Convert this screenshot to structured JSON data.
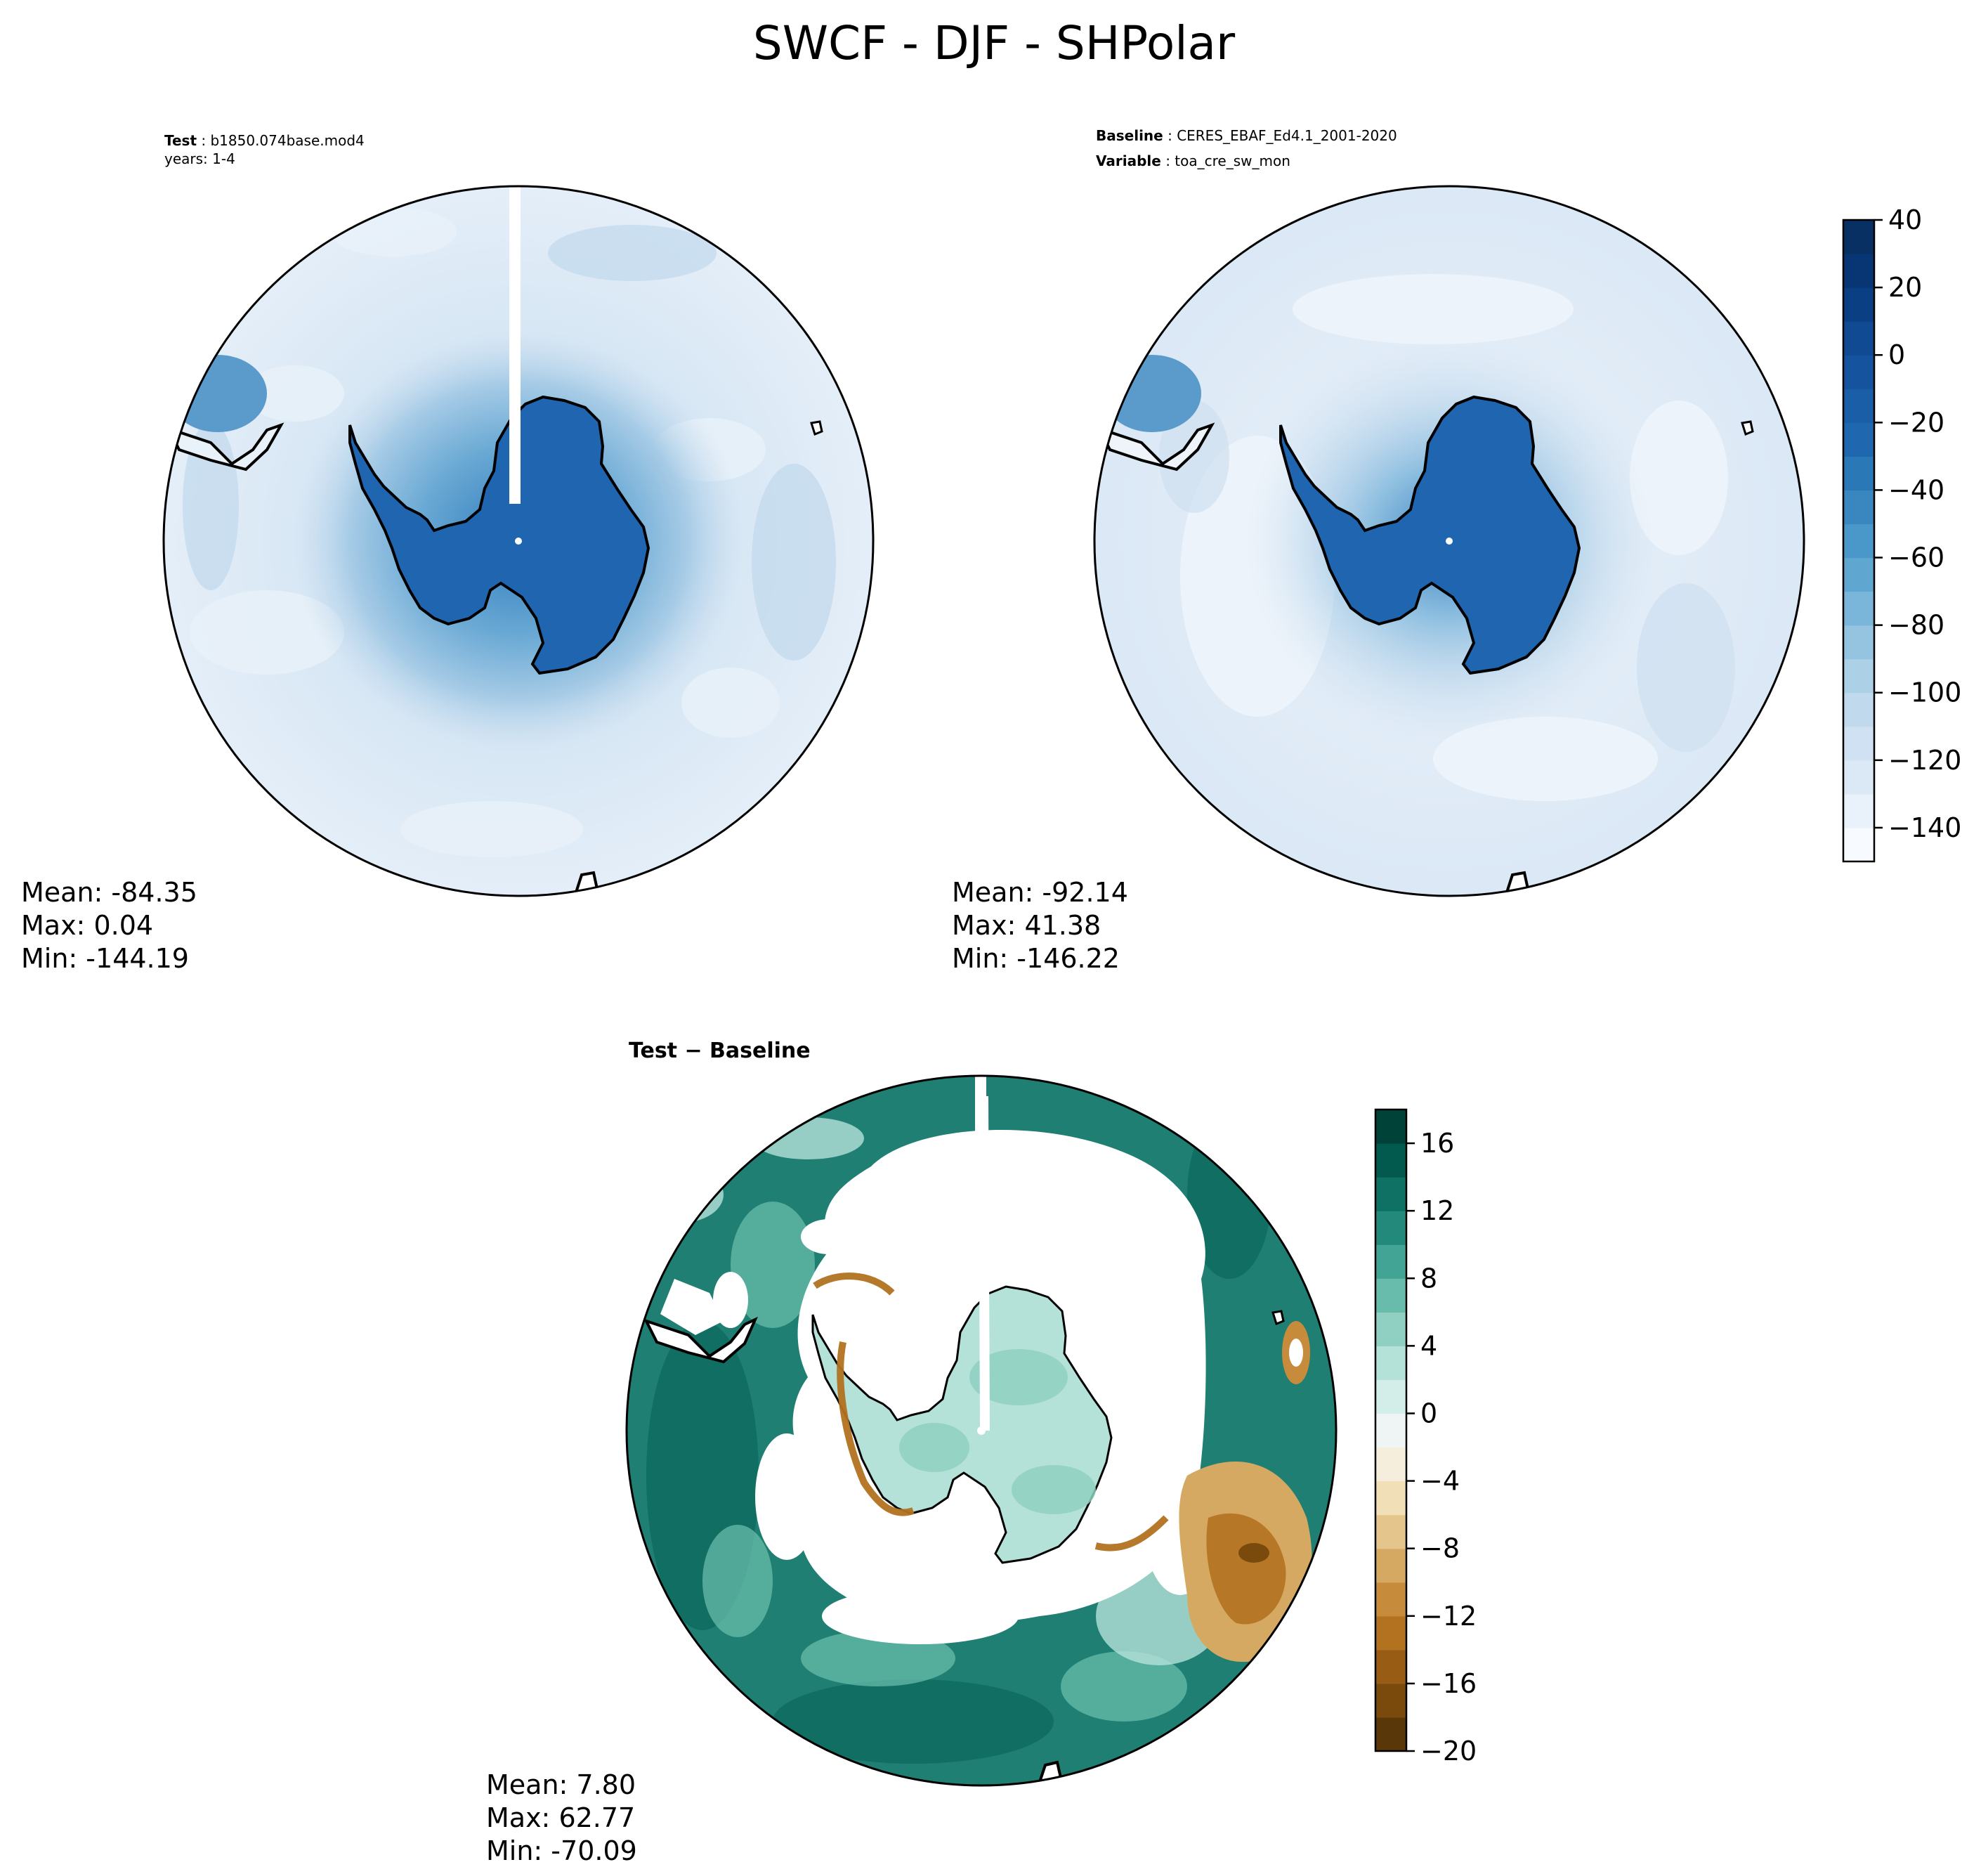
{
  "figure": {
    "title": "SWCF - DJF - SHPolar"
  },
  "colors": {
    "deep_blue": "#2065b0",
    "light_blue": "#dbe8f5",
    "land_outline": "#000000",
    "diff_teal": "#1f7f72",
    "diff_brown": "#a86b22"
  },
  "chart_data": [
    {
      "type": "heatmap",
      "projection": "south-polar-stereographic",
      "region": "SHPolar",
      "label_bold": "Test",
      "label_value": "b1850.074base.mod4",
      "label_line2": "years: 1-4",
      "stats": {
        "mean": "Mean: -84.35",
        "max": "Max:  0.04",
        "min": "Min: -144.19"
      }
    },
    {
      "type": "heatmap",
      "projection": "south-polar-stereographic",
      "region": "SHPolar",
      "label_bold": "Baseline",
      "label_value": "CERES_EBAF_Ed4.1_2001-2020",
      "label2_bold": "Variable",
      "label2_value": "toa_cre_sw_mon",
      "stats": {
        "mean": "Mean: -92.14",
        "max": "Max: 41.38",
        "min": "Min: -146.22"
      },
      "colorbar": {
        "range": [
          -150,
          40
        ],
        "ticks": [
          40,
          20,
          0,
          -20,
          -40,
          -60,
          -80,
          -100,
          -120,
          -140
        ],
        "tick_labels": [
          "40",
          "20",
          "0",
          "−20",
          "−40",
          "−60",
          "−80",
          "−100",
          "−120",
          "−140"
        ],
        "colors": [
          "#f7fbff",
          "#e9f2fa",
          "#dbe8f5",
          "#cfe1f2",
          "#c1d9ed",
          "#acd0e6",
          "#94c4df",
          "#7ab6d9",
          "#5fa6d1",
          "#4a97c9",
          "#3a87c0",
          "#2b78b7",
          "#1f68af",
          "#1a5ea8",
          "#15539f",
          "#0f4a93",
          "#0b3f84",
          "#083573",
          "#083062"
        ]
      }
    },
    {
      "type": "heatmap",
      "projection": "south-polar-stereographic",
      "region": "SHPolar",
      "label_bold": "Test − Baseline",
      "stats": {
        "mean": "Mean:  7.80",
        "max": "Max: 62.77",
        "min": "Min: -70.09"
      },
      "colorbar": {
        "range": [
          -20,
          18
        ],
        "ticks": [
          16,
          12,
          8,
          4,
          0,
          -4,
          -8,
          -12,
          -16,
          -20
        ],
        "tick_labels": [
          "16",
          "12",
          "8",
          "4",
          "0",
          "−4",
          "−8",
          "−12",
          "−16",
          "−20"
        ],
        "colors": [
          "#5a3708",
          "#7a4a0c",
          "#985c14",
          "#b27220",
          "#c68c3c",
          "#d6a962",
          "#e4c68d",
          "#f0dfb7",
          "#f6eedc",
          "#eef5f4",
          "#d3ede8",
          "#b4e1d8",
          "#8fd0c2",
          "#68bcab",
          "#42a494",
          "#238a7b",
          "#0f7164",
          "#015a4d",
          "#004238"
        ]
      }
    }
  ]
}
